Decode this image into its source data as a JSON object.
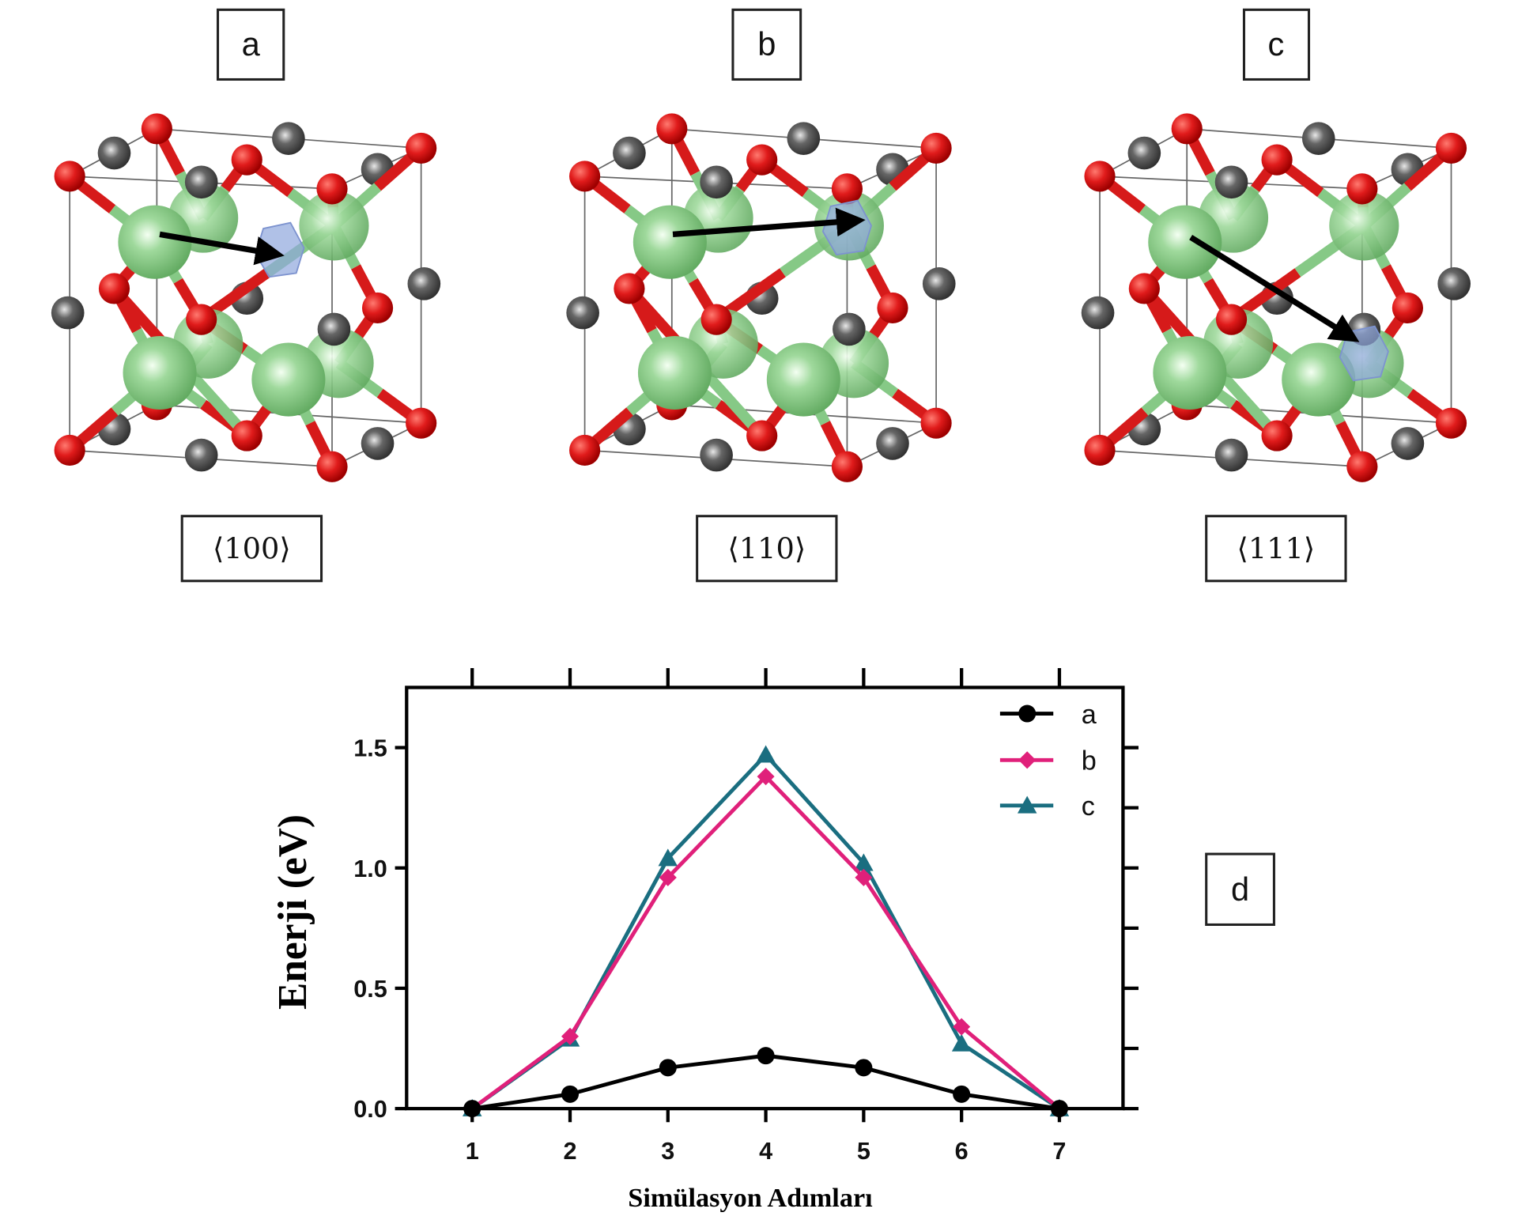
{
  "panels": [
    {
      "label": "a",
      "direction": "⟨100⟩"
    },
    {
      "label": "b",
      "direction": "⟨110⟩"
    },
    {
      "label": "c",
      "direction": "⟨111⟩"
    }
  ],
  "chart_label": "d",
  "colors": {
    "oxygen": "#d61a1a",
    "metal_large": "#86c986",
    "metal_small": "#555555",
    "vacancy": "#8fa6dd",
    "series_a": "#000000",
    "series_b": "#e0207a",
    "series_c": "#1a6e80"
  },
  "chart_data": {
    "type": "line",
    "title": "",
    "xlabel": "Simülasyon Adımları",
    "ylabel": "Enerji (eV)",
    "x": [
      1,
      2,
      3,
      4,
      5,
      6,
      7
    ],
    "xticks": [
      "1",
      "2",
      "3",
      "4",
      "5",
      "6",
      "7"
    ],
    "yticks": [
      "0.0",
      "0.5",
      "1.0",
      "1.5"
    ],
    "xlim": [
      0.33,
      7.65
    ],
    "ylim": [
      0,
      1.75
    ],
    "grid": false,
    "legend": "top-right",
    "series": [
      {
        "name": "a",
        "marker": "circle",
        "color": "#000000",
        "values": [
          0.0,
          0.06,
          0.17,
          0.22,
          0.17,
          0.06,
          0.0
        ]
      },
      {
        "name": "b",
        "marker": "diamond",
        "color": "#e0207a",
        "values": [
          0.0,
          0.3,
          0.96,
          1.38,
          0.96,
          0.34,
          0.0
        ]
      },
      {
        "name": "c",
        "marker": "triangle",
        "color": "#1a6e80",
        "values": [
          0.0,
          0.29,
          1.04,
          1.47,
          1.02,
          0.27,
          0.0
        ]
      }
    ]
  }
}
